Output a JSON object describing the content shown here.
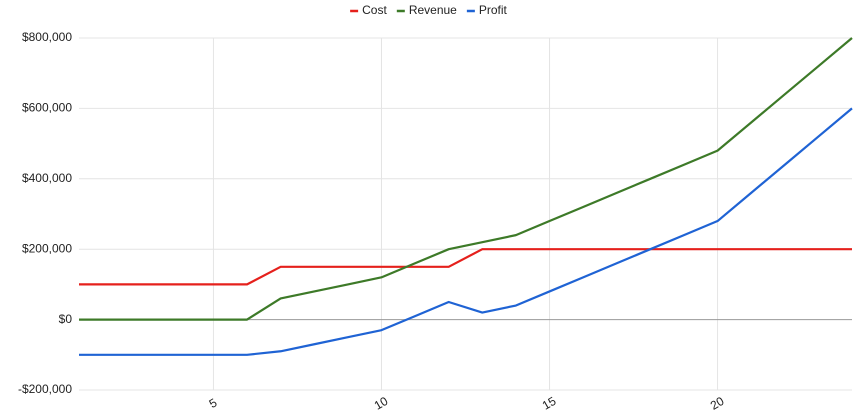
{
  "chart_data": {
    "type": "line",
    "x": [
      1,
      2,
      3,
      4,
      5,
      6,
      7,
      8,
      9,
      10,
      11,
      12,
      13,
      14,
      15,
      16,
      17,
      18,
      19,
      20,
      21,
      22,
      23,
      24
    ],
    "series": [
      {
        "name": "Cost",
        "color": "#e5201c",
        "values": [
          100000,
          100000,
          100000,
          100000,
          100000,
          100000,
          150000,
          150000,
          150000,
          150000,
          150000,
          150000,
          200000,
          200000,
          200000,
          200000,
          200000,
          200000,
          200000,
          200000,
          200000,
          200000,
          200000,
          200000
        ]
      },
      {
        "name": "Revenue",
        "color": "#3d7a28",
        "values": [
          0,
          0,
          0,
          0,
          0,
          0,
          60000,
          80000,
          100000,
          120000,
          160000,
          200000,
          220000,
          240000,
          280000,
          320000,
          360000,
          400000,
          440000,
          480000,
          560000,
          640000,
          720000,
          800000
        ]
      },
      {
        "name": "Profit",
        "color": "#1f63d4",
        "values": [
          -100000,
          -100000,
          -100000,
          -100000,
          -100000,
          -100000,
          -90000,
          -70000,
          -50000,
          -30000,
          10000,
          50000,
          20000,
          40000,
          80000,
          120000,
          160000,
          200000,
          240000,
          280000,
          360000,
          440000,
          520000,
          600000
        ]
      }
    ],
    "xlim": [
      1,
      24
    ],
    "xticks": [
      5,
      10,
      15,
      20
    ],
    "ylim": [
      -200000,
      800000
    ],
    "yticks": [
      {
        "value": -200000,
        "label": "-$200,000"
      },
      {
        "value": 0,
        "label": "$0"
      },
      {
        "value": 200000,
        "label": "$200,000"
      },
      {
        "value": 400000,
        "label": "$400,000"
      },
      {
        "value": 600000,
        "label": "$600,000"
      },
      {
        "value": 800000,
        "label": "$800,000"
      }
    ],
    "grid": true,
    "legend": "top"
  }
}
